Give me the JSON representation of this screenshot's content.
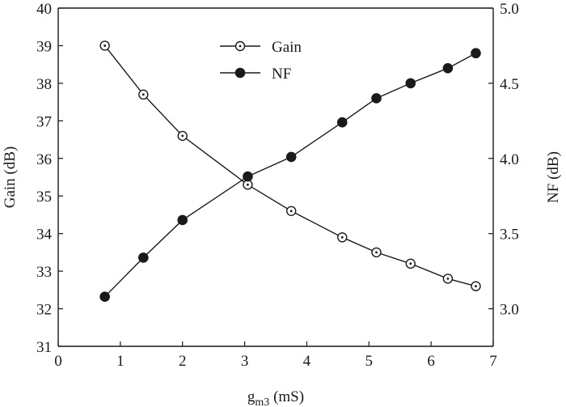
{
  "chart_data": {
    "type": "line",
    "xlabel_main": "g",
    "xlabel_sub": "m3",
    "xlabel_unit": " (mS)",
    "ylabel_left": "Gain (dB)",
    "ylabel_right": "NF (dB)",
    "xlim": [
      0,
      7
    ],
    "ylim_left": [
      31,
      40
    ],
    "ylim_right": [
      2.75,
      5.0
    ],
    "x_ticks": [
      "0",
      "1",
      "2",
      "3",
      "4",
      "5",
      "6",
      "7"
    ],
    "y_left_ticks": [
      "31",
      "32",
      "33",
      "34",
      "35",
      "36",
      "37",
      "38",
      "39",
      "40"
    ],
    "y_right_ticks": [
      "3.0",
      "3.5",
      "4.0",
      "4.5",
      "5.0"
    ],
    "grid": false,
    "legend_position": "top-center",
    "series": [
      {
        "name": "Gain",
        "axis": "left",
        "marker": "open-circle",
        "x": [
          0.75,
          1.37,
          2.0,
          3.05,
          3.75,
          4.57,
          5.12,
          5.67,
          6.27,
          6.72
        ],
        "y": [
          39.0,
          37.7,
          36.6,
          35.3,
          34.6,
          33.9,
          33.5,
          33.2,
          32.8,
          32.6
        ]
      },
      {
        "name": "NF",
        "axis": "right",
        "marker": "filled-circle",
        "x": [
          0.75,
          1.37,
          2.0,
          3.05,
          3.75,
          4.57,
          5.12,
          5.67,
          6.27,
          6.72
        ],
        "y": [
          3.08,
          3.34,
          3.59,
          3.88,
          4.01,
          4.24,
          4.4,
          4.5,
          4.6,
          4.7
        ]
      }
    ]
  }
}
